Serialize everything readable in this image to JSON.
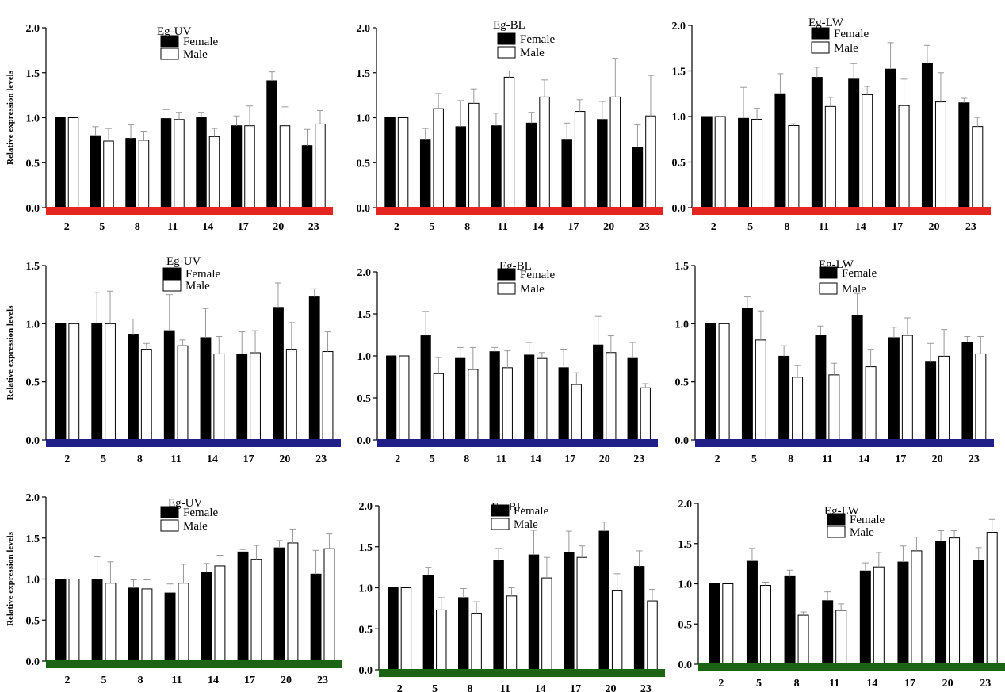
{
  "figure": {
    "ylabel": "Relative expression levels",
    "legend": {
      "female": "Female",
      "male": "Male"
    },
    "colors": {
      "female": "#000000",
      "male": "#ffffff",
      "outline": "#000000",
      "errorbar": "#999999"
    }
  },
  "chart_data": [
    {
      "type": "bar",
      "title": "Eg-UV",
      "xlabel": "",
      "ylabel": "Relative expression levels",
      "ylim": [
        0,
        2
      ],
      "yticks": [
        "0.0",
        "0.5",
        "1.0",
        "1.5",
        "2.0"
      ],
      "axis_color": "#e42521",
      "categories": [
        "2",
        "5",
        "8",
        "11",
        "14",
        "17",
        "20",
        "23"
      ],
      "series": [
        {
          "name": "Female",
          "values": [
            1.0,
            0.8,
            0.77,
            0.99,
            1.0,
            0.91,
            1.41,
            0.69
          ],
          "errors": [
            0,
            0.1,
            0.15,
            0.1,
            0.06,
            0.11,
            0.1,
            0.18
          ]
        },
        {
          "name": "Male",
          "values": [
            1.0,
            0.74,
            0.75,
            0.98,
            0.79,
            0.91,
            0.91,
            0.93
          ],
          "errors": [
            0,
            0.14,
            0.1,
            0.08,
            0.09,
            0.22,
            0.21,
            0.15
          ]
        }
      ]
    },
    {
      "type": "bar",
      "title": "Eg-BL",
      "xlabel": "",
      "ylabel": "",
      "ylim": [
        0,
        2
      ],
      "yticks": [
        "0.0",
        "0.5",
        "1.0",
        "1.5",
        "2.0"
      ],
      "axis_color": "#e42521",
      "categories": [
        "2",
        "5",
        "8",
        "11",
        "14",
        "17",
        "20",
        "23"
      ],
      "series": [
        {
          "name": "Female",
          "values": [
            1.0,
            0.76,
            0.9,
            0.91,
            0.94,
            0.76,
            0.98,
            0.67
          ],
          "errors": [
            0,
            0.12,
            0.29,
            0.14,
            0.12,
            0.18,
            0.2,
            0.25
          ]
        },
        {
          "name": "Male",
          "values": [
            1.0,
            1.1,
            1.16,
            1.45,
            1.23,
            1.07,
            1.23,
            1.02
          ],
          "errors": [
            0,
            0.17,
            0.16,
            0.07,
            0.19,
            0.13,
            0.43,
            0.45
          ]
        }
      ]
    },
    {
      "type": "bar",
      "title": "Eg-LW",
      "xlabel": "",
      "ylabel": "",
      "ylim": [
        0,
        2
      ],
      "yticks": [
        "0.0",
        "0.5",
        "1.0",
        "1.5",
        "2.0"
      ],
      "axis_color": "#e42521",
      "categories": [
        "2",
        "5",
        "8",
        "11",
        "14",
        "17",
        "20",
        "23"
      ],
      "series": [
        {
          "name": "Female",
          "values": [
            1.0,
            0.98,
            1.25,
            1.43,
            1.41,
            1.52,
            1.58,
            1.15
          ],
          "errors": [
            0,
            0.34,
            0.22,
            0.11,
            0.17,
            0.29,
            0.2,
            0.05
          ]
        },
        {
          "name": "Male",
          "values": [
            1.0,
            0.97,
            0.9,
            1.11,
            1.24,
            1.12,
            1.16,
            0.89
          ],
          "errors": [
            0,
            0.12,
            0.02,
            0.1,
            0.09,
            0.29,
            0.32,
            0.1
          ]
        }
      ]
    },
    {
      "type": "bar",
      "title": "Eg-UV",
      "xlabel": "",
      "ylabel": "Relative expression levels",
      "ylim": [
        0,
        1.5
      ],
      "yticks": [
        "0.0",
        "0.5",
        "1.0",
        "1.5"
      ],
      "axis_color": "#1f1f87",
      "categories": [
        "2",
        "5",
        "8",
        "11",
        "14",
        "17",
        "20",
        "23"
      ],
      "series": [
        {
          "name": "Female",
          "values": [
            1.0,
            1.0,
            0.91,
            0.94,
            0.88,
            0.74,
            1.14,
            1.23
          ],
          "errors": [
            0,
            0.27,
            0.13,
            0.31,
            0.25,
            0.19,
            0.21,
            0.07
          ]
        },
        {
          "name": "Male",
          "values": [
            1.0,
            1.0,
            0.78,
            0.81,
            0.74,
            0.75,
            0.78,
            0.76
          ],
          "errors": [
            0,
            0.28,
            0.05,
            0.05,
            0.15,
            0.19,
            0.23,
            0.17
          ]
        }
      ]
    },
    {
      "type": "bar",
      "title": "Eg-BL",
      "xlabel": "",
      "ylabel": "",
      "ylim": [
        0,
        2
      ],
      "yticks": [
        "0.0",
        "0.5",
        "1.0",
        "1.5",
        "2.0"
      ],
      "axis_color": "#1f1f87",
      "categories": [
        "2",
        "5",
        "8",
        "11",
        "14",
        "17",
        "20",
        "23"
      ],
      "series": [
        {
          "name": "Female",
          "values": [
            1.0,
            1.24,
            0.97,
            1.05,
            1.01,
            0.86,
            1.13,
            0.97
          ],
          "errors": [
            0,
            0.29,
            0.13,
            0.05,
            0.15,
            0.22,
            0.34,
            0.19
          ]
        },
        {
          "name": "Male",
          "values": [
            1.0,
            0.79,
            0.84,
            0.86,
            0.97,
            0.66,
            1.04,
            0.62
          ],
          "errors": [
            0,
            0.19,
            0.26,
            0.2,
            0.07,
            0.14,
            0.2,
            0.05
          ]
        }
      ]
    },
    {
      "type": "bar",
      "title": "Eg-LW",
      "xlabel": "",
      "ylabel": "",
      "ylim": [
        0,
        1.5
      ],
      "yticks": [
        "0.0",
        "0.5",
        "1.0",
        "1.5"
      ],
      "axis_color": "#1f1f87",
      "categories": [
        "2",
        "5",
        "8",
        "11",
        "14",
        "17",
        "20",
        "23"
      ],
      "series": [
        {
          "name": "Female",
          "values": [
            1.0,
            1.13,
            0.72,
            0.9,
            1.07,
            0.88,
            0.67,
            0.84
          ],
          "errors": [
            0,
            0.1,
            0.09,
            0.08,
            0.19,
            0.09,
            0.16,
            0.05
          ]
        },
        {
          "name": "Male",
          "values": [
            1.0,
            0.86,
            0.54,
            0.56,
            0.63,
            0.9,
            0.72,
            0.74
          ],
          "errors": [
            0,
            0.25,
            0.1,
            0.1,
            0.15,
            0.15,
            0.23,
            0.15
          ]
        }
      ]
    },
    {
      "type": "bar",
      "title": "Eg-UV",
      "xlabel": "",
      "ylabel": "Relative expression levels",
      "ylim": [
        0,
        2
      ],
      "yticks": [
        "0.0",
        "0.5",
        "1.0",
        "1.5",
        "2.0"
      ],
      "axis_color": "#1c6414",
      "categories": [
        "2",
        "5",
        "8",
        "11",
        "14",
        "17",
        "20",
        "23"
      ],
      "series": [
        {
          "name": "Female",
          "values": [
            1.0,
            0.99,
            0.89,
            0.83,
            1.08,
            1.33,
            1.38,
            1.06
          ],
          "errors": [
            0,
            0.28,
            0.1,
            0.11,
            0.11,
            0.03,
            0.09,
            0.29
          ]
        },
        {
          "name": "Male",
          "values": [
            1.0,
            0.95,
            0.88,
            0.95,
            1.16,
            1.24,
            1.44,
            1.37
          ],
          "errors": [
            0,
            0.26,
            0.11,
            0.23,
            0.13,
            0.17,
            0.17,
            0.18
          ]
        }
      ]
    },
    {
      "type": "bar",
      "title": "Eg-BL",
      "xlabel": "",
      "ylabel": "",
      "ylim": [
        0,
        2
      ],
      "yticks": [
        "0.0",
        "0.5",
        "1.0",
        "1.5",
        "2.0"
      ],
      "axis_color": "#1c6414",
      "categories": [
        "2",
        "5",
        "8",
        "11",
        "14",
        "17",
        "20",
        "23"
      ],
      "series": [
        {
          "name": "Female",
          "values": [
            1.0,
            1.15,
            0.88,
            1.33,
            1.4,
            1.43,
            1.69,
            1.26
          ],
          "errors": [
            0,
            0.1,
            0.11,
            0.15,
            0.3,
            0.26,
            0.11,
            0.19
          ]
        },
        {
          "name": "Male",
          "values": [
            1.0,
            0.73,
            0.69,
            0.9,
            1.12,
            1.37,
            0.97,
            0.84
          ],
          "errors": [
            0,
            0.15,
            0.14,
            0.1,
            0.25,
            0.14,
            0.2,
            0.14
          ]
        }
      ]
    },
    {
      "type": "bar",
      "title": "Eg-LW",
      "xlabel": "",
      "ylabel": "",
      "ylim": [
        0,
        2
      ],
      "yticks": [
        "0.0",
        "0.5",
        "1.0",
        "1.5",
        "2.0"
      ],
      "axis_color": "#1c6414",
      "categories": [
        "2",
        "5",
        "8",
        "11",
        "14",
        "17",
        "20",
        "23"
      ],
      "series": [
        {
          "name": "Female",
          "values": [
            1.0,
            1.28,
            1.09,
            0.79,
            1.16,
            1.27,
            1.53,
            1.29
          ],
          "errors": [
            0,
            0.16,
            0.08,
            0.11,
            0.1,
            0.2,
            0.13,
            0.16
          ]
        },
        {
          "name": "Male",
          "values": [
            1.0,
            0.98,
            0.61,
            0.67,
            1.21,
            1.41,
            1.57,
            1.64
          ],
          "errors": [
            0,
            0.04,
            0.04,
            0.08,
            0.18,
            0.17,
            0.09,
            0.16
          ]
        }
      ]
    }
  ]
}
